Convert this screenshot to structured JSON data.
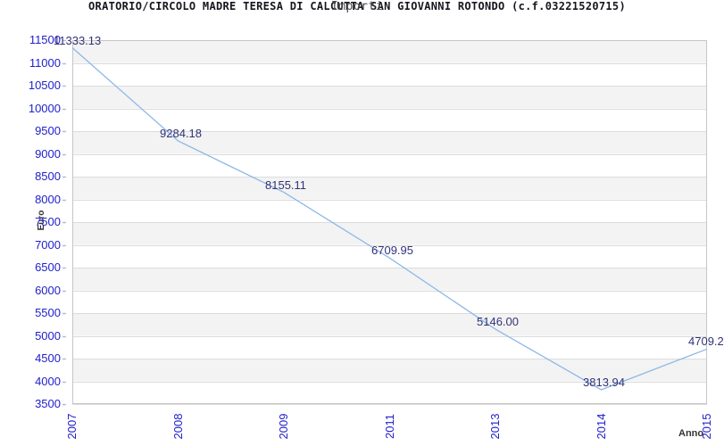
{
  "chart_data": {
    "type": "line",
    "title": "ORATORIO/CIRCOLO MADRE TERESA DI CALCUTTA SAN GIOVANNI ROTONDO (c.f.03221520715)",
    "subtitle": "Importi",
    "xlabel": "Anno",
    "ylabel": "Euro",
    "categories": [
      "2007",
      "2008",
      "2009",
      "2011",
      "2013",
      "2014",
      "2015"
    ],
    "series": [
      {
        "name": "Importi",
        "values": [
          11333.13,
          9284.18,
          8155.11,
          6709.95,
          5146.0,
          3813.94,
          4709.2
        ]
      }
    ],
    "point_labels": [
      "11333.13",
      "9284.18",
      "8155.11",
      "6709.95",
      "5146.00",
      "3813.94",
      "4709.2"
    ],
    "ylim": [
      3500,
      11500
    ],
    "ytick_step": 500,
    "ytick_labels": [
      "3500",
      "4000",
      "4500",
      "5000",
      "5500",
      "6000",
      "6500",
      "7000",
      "7500",
      "8000",
      "8500",
      "9000",
      "9500",
      "10000",
      "10500",
      "11000",
      "11500"
    ],
    "grid": "horizontal-on",
    "alternating_bands": true,
    "legend_position": "none",
    "colors": {
      "line": "#8db8e8",
      "tick_text": "#2121cc",
      "point_label_text": "#323278",
      "band_gray": "#f3f3f3",
      "gridline": "#dcdcdc",
      "plot_border": "#c6c6c6",
      "axis_tick_mark": "#b8b8e0",
      "title_text": "#16161e",
      "subtitle_text": "#4a4a4a"
    }
  }
}
